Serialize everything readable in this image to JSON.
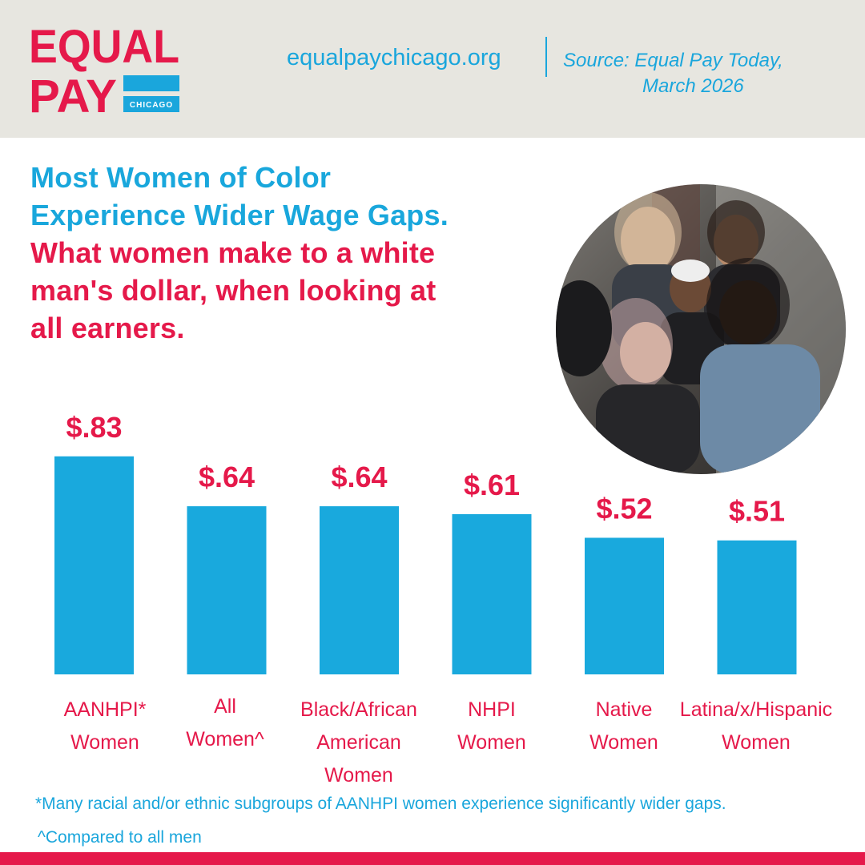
{
  "colors": {
    "blue": "#1aa6dc",
    "red": "#e5194a",
    "header_bg": "#e7e6e0"
  },
  "header": {
    "logo_line1": "EQUAL",
    "logo_line2": "PAY",
    "logo_sub": "CHICAGO",
    "site": "equalpaychicago.org",
    "source_line1": "Source:  Equal Pay Today,",
    "source_line2": "March 2026"
  },
  "title": {
    "line1": "Most Women of Color",
    "line2": "Experience Wider Wage Gaps.",
    "line3": "What women make to a white",
    "line4": "man's dollar, when looking at",
    "line5": "all earners."
  },
  "photo": {
    "icon": "group-of-women-photo"
  },
  "chart_data": {
    "type": "bar",
    "categories": [
      "AANHPI* Women",
      "All Women^",
      "Black/African American Women",
      "NHPI Women",
      "Native Women",
      "Latina/x/Hispanic Women"
    ],
    "category_lines": [
      [
        "AANHPI*",
        "Women"
      ],
      [
        "All",
        "Women^"
      ],
      [
        "Black/African",
        "American",
        "Women"
      ],
      [
        "NHPI",
        "Women"
      ],
      [
        "Native",
        "Women"
      ],
      [
        "Latina/x/Hispanic",
        "Women"
      ]
    ],
    "values": [
      0.83,
      0.64,
      0.64,
      0.61,
      0.52,
      0.51
    ],
    "data_labels": [
      "$.83",
      "$.64",
      "$.64",
      "$.61",
      "$.52",
      "$.51"
    ],
    "bar_color": "#19a9dd",
    "label_color": "#e5194a"
  },
  "footnotes": {
    "note1": "*Many racial and/or ethnic subgroups of AANHPI women experience significantly wider gaps.",
    "note2": "^Compared to all men"
  }
}
